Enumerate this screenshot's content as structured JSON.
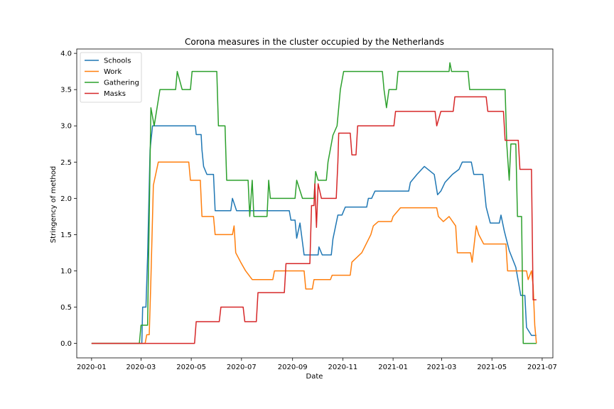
{
  "chart_data": {
    "type": "line",
    "title": "Corona measures in the cluster occupied by the Netherlands",
    "xlabel": "Date",
    "ylabel": "Stringency of method",
    "xlim": [
      "2019-12-14",
      "2021-07-14"
    ],
    "ylim": [
      -0.2,
      4.06
    ],
    "x_ticks": [
      "2020-01",
      "2020-03",
      "2020-05",
      "2020-07",
      "2020-09",
      "2020-11",
      "2021-01",
      "2021-03",
      "2021-05",
      "2021-07"
    ],
    "y_ticks": [
      "0.0",
      "0.5",
      "1.0",
      "1.5",
      "2.0",
      "2.5",
      "3.0",
      "3.5",
      "4.0"
    ],
    "legend_position": "upper-left",
    "series": [
      {
        "name": "Schools",
        "color": "#1f77b4",
        "points": [
          [
            "2020-01-01",
            0
          ],
          [
            "2020-03-02",
            0
          ],
          [
            "2020-03-03",
            0.5
          ],
          [
            "2020-03-07",
            0.5
          ],
          [
            "2020-03-09",
            1.2
          ],
          [
            "2020-03-12",
            2.67
          ],
          [
            "2020-03-15",
            3.0
          ],
          [
            "2020-05-06",
            3.0
          ],
          [
            "2020-05-07",
            2.88
          ],
          [
            "2020-05-13",
            2.88
          ],
          [
            "2020-05-14",
            2.67
          ],
          [
            "2020-05-16",
            2.44
          ],
          [
            "2020-05-20",
            2.33
          ],
          [
            "2020-05-28",
            2.33
          ],
          [
            "2020-05-30",
            1.83
          ],
          [
            "2020-06-18",
            1.83
          ],
          [
            "2020-06-20",
            2.0
          ],
          [
            "2020-06-25",
            1.83
          ],
          [
            "2020-08-28",
            1.83
          ],
          [
            "2020-08-30",
            1.7
          ],
          [
            "2020-09-04",
            1.7
          ],
          [
            "2020-09-06",
            1.45
          ],
          [
            "2020-09-10",
            1.66
          ],
          [
            "2020-09-15",
            1.22
          ],
          [
            "2020-10-02",
            1.22
          ],
          [
            "2020-10-03",
            1.33
          ],
          [
            "2020-10-07",
            1.22
          ],
          [
            "2020-10-18",
            1.22
          ],
          [
            "2020-10-20",
            1.44
          ],
          [
            "2020-10-24",
            1.66
          ],
          [
            "2020-10-26",
            1.77
          ],
          [
            "2020-10-31",
            1.77
          ],
          [
            "2020-11-04",
            1.88
          ],
          [
            "2020-11-30",
            1.88
          ],
          [
            "2020-12-02",
            2.0
          ],
          [
            "2020-12-06",
            2.0
          ],
          [
            "2020-12-10",
            2.1
          ],
          [
            "2021-01-20",
            2.1
          ],
          [
            "2021-01-22",
            2.22
          ],
          [
            "2021-01-30",
            2.33
          ],
          [
            "2021-02-08",
            2.44
          ],
          [
            "2021-02-20",
            2.33
          ],
          [
            "2021-02-24",
            2.05
          ],
          [
            "2021-02-28",
            2.1
          ],
          [
            "2021-03-05",
            2.22
          ],
          [
            "2021-03-14",
            2.33
          ],
          [
            "2021-03-22",
            2.4
          ],
          [
            "2021-03-26",
            2.5
          ],
          [
            "2021-04-06",
            2.5
          ],
          [
            "2021-04-09",
            2.33
          ],
          [
            "2021-04-20",
            2.33
          ],
          [
            "2021-04-24",
            1.88
          ],
          [
            "2021-04-29",
            1.66
          ],
          [
            "2021-05-10",
            1.66
          ],
          [
            "2021-05-12",
            1.77
          ],
          [
            "2021-05-16",
            1.55
          ],
          [
            "2021-05-22",
            1.28
          ],
          [
            "2021-05-30",
            1.05
          ],
          [
            "2021-06-05",
            0.66
          ],
          [
            "2021-06-10",
            0.66
          ],
          [
            "2021-06-12",
            0.22
          ],
          [
            "2021-06-18",
            0.11
          ],
          [
            "2021-06-24",
            0.11
          ]
        ]
      },
      {
        "name": "Work",
        "color": "#ff7f0e",
        "points": [
          [
            "2020-01-01",
            0
          ],
          [
            "2020-03-06",
            0
          ],
          [
            "2020-03-08",
            0.12
          ],
          [
            "2020-03-11",
            0.12
          ],
          [
            "2020-03-13",
            0.88
          ],
          [
            "2020-03-16",
            2.18
          ],
          [
            "2020-03-22",
            2.5
          ],
          [
            "2020-04-28",
            2.5
          ],
          [
            "2020-04-30",
            2.25
          ],
          [
            "2020-05-12",
            2.25
          ],
          [
            "2020-05-14",
            1.75
          ],
          [
            "2020-05-28",
            1.75
          ],
          [
            "2020-05-30",
            1.5
          ],
          [
            "2020-06-20",
            1.5
          ],
          [
            "2020-06-22",
            1.62
          ],
          [
            "2020-06-24",
            1.25
          ],
          [
            "2020-06-30",
            1.12
          ],
          [
            "2020-07-06",
            1.0
          ],
          [
            "2020-07-14",
            0.88
          ],
          [
            "2020-08-08",
            0.88
          ],
          [
            "2020-08-10",
            1.0
          ],
          [
            "2020-09-15",
            1.0
          ],
          [
            "2020-09-17",
            0.75
          ],
          [
            "2020-09-25",
            0.75
          ],
          [
            "2020-09-27",
            0.88
          ],
          [
            "2020-10-17",
            0.88
          ],
          [
            "2020-10-19",
            0.94
          ],
          [
            "2020-11-10",
            0.94
          ],
          [
            "2020-11-12",
            1.12
          ],
          [
            "2020-11-24",
            1.25
          ],
          [
            "2020-12-05",
            1.5
          ],
          [
            "2020-12-08",
            1.62
          ],
          [
            "2020-12-14",
            1.68
          ],
          [
            "2020-12-30",
            1.68
          ],
          [
            "2021-01-01",
            1.75
          ],
          [
            "2021-01-10",
            1.87
          ],
          [
            "2021-02-23",
            1.87
          ],
          [
            "2021-02-25",
            1.75
          ],
          [
            "2021-03-03",
            1.68
          ],
          [
            "2021-03-10",
            1.75
          ],
          [
            "2021-03-18",
            1.62
          ],
          [
            "2021-03-20",
            1.25
          ],
          [
            "2021-04-05",
            1.25
          ],
          [
            "2021-04-07",
            1.12
          ],
          [
            "2021-04-12",
            1.62
          ],
          [
            "2021-04-15",
            1.5
          ],
          [
            "2021-04-21",
            1.37
          ],
          [
            "2021-05-18",
            1.37
          ],
          [
            "2021-05-20",
            1.0
          ],
          [
            "2021-06-12",
            1.0
          ],
          [
            "2021-06-14",
            0.88
          ],
          [
            "2021-06-18",
            1.0
          ],
          [
            "2021-06-20",
            0.8
          ],
          [
            "2021-06-22",
            0.25
          ],
          [
            "2021-06-24",
            0.0
          ]
        ]
      },
      {
        "name": "Gathering",
        "color": "#2ca02c",
        "points": [
          [
            "2020-01-01",
            0
          ],
          [
            "2020-02-28",
            0
          ],
          [
            "2020-03-01",
            0.25
          ],
          [
            "2020-03-09",
            0.25
          ],
          [
            "2020-03-13",
            3.25
          ],
          [
            "2020-03-17",
            3.0
          ],
          [
            "2020-03-24",
            3.5
          ],
          [
            "2020-04-12",
            3.5
          ],
          [
            "2020-04-14",
            3.75
          ],
          [
            "2020-04-20",
            3.5
          ],
          [
            "2020-04-30",
            3.5
          ],
          [
            "2020-05-02",
            3.75
          ],
          [
            "2020-06-01",
            3.75
          ],
          [
            "2020-06-03",
            3.0
          ],
          [
            "2020-06-11",
            3.0
          ],
          [
            "2020-06-13",
            2.25
          ],
          [
            "2020-07-09",
            2.25
          ],
          [
            "2020-07-11",
            1.75
          ],
          [
            "2020-07-14",
            2.25
          ],
          [
            "2020-07-16",
            1.75
          ],
          [
            "2020-08-01",
            1.75
          ],
          [
            "2020-08-03",
            2.25
          ],
          [
            "2020-08-05",
            2.0
          ],
          [
            "2020-09-04",
            2.0
          ],
          [
            "2020-09-06",
            2.25
          ],
          [
            "2020-09-13",
            2.0
          ],
          [
            "2020-09-27",
            2.0
          ],
          [
            "2020-09-29",
            2.37
          ],
          [
            "2020-10-02",
            2.25
          ],
          [
            "2020-10-12",
            2.25
          ],
          [
            "2020-10-14",
            2.5
          ],
          [
            "2020-10-20",
            2.87
          ],
          [
            "2020-10-25",
            3.0
          ],
          [
            "2020-10-29",
            3.5
          ],
          [
            "2020-11-02",
            3.75
          ],
          [
            "2020-12-19",
            3.75
          ],
          [
            "2020-12-21",
            3.5
          ],
          [
            "2020-12-24",
            3.25
          ],
          [
            "2020-12-27",
            3.5
          ],
          [
            "2021-01-05",
            3.5
          ],
          [
            "2021-01-07",
            3.75
          ],
          [
            "2021-03-10",
            3.75
          ],
          [
            "2021-03-11",
            3.87
          ],
          [
            "2021-03-13",
            3.75
          ],
          [
            "2021-04-02",
            3.75
          ],
          [
            "2021-04-04",
            3.5
          ],
          [
            "2021-05-17",
            3.5
          ],
          [
            "2021-05-19",
            2.75
          ],
          [
            "2021-05-22",
            2.25
          ],
          [
            "2021-05-24",
            2.75
          ],
          [
            "2021-05-30",
            2.75
          ],
          [
            "2021-06-01",
            1.75
          ],
          [
            "2021-06-06",
            1.75
          ],
          [
            "2021-06-08",
            0.0
          ],
          [
            "2021-06-24",
            0.0
          ]
        ]
      },
      {
        "name": "Masks",
        "color": "#d62728",
        "points": [
          [
            "2020-01-01",
            0
          ],
          [
            "2020-05-05",
            0
          ],
          [
            "2020-05-07",
            0.3
          ],
          [
            "2020-06-04",
            0.3
          ],
          [
            "2020-06-06",
            0.5
          ],
          [
            "2020-07-03",
            0.5
          ],
          [
            "2020-07-05",
            0.3
          ],
          [
            "2020-07-19",
            0.3
          ],
          [
            "2020-07-21",
            0.7
          ],
          [
            "2020-08-22",
            0.7
          ],
          [
            "2020-08-24",
            1.1
          ],
          [
            "2020-09-22",
            1.1
          ],
          [
            "2020-09-24",
            1.9
          ],
          [
            "2020-09-27",
            1.9
          ],
          [
            "2020-09-28",
            2.2
          ],
          [
            "2020-09-30",
            1.6
          ],
          [
            "2020-10-02",
            2.2
          ],
          [
            "2020-10-06",
            2.0
          ],
          [
            "2020-10-24",
            2.0
          ],
          [
            "2020-10-26",
            2.5
          ],
          [
            "2020-10-27",
            2.9
          ],
          [
            "2020-11-10",
            2.9
          ],
          [
            "2020-11-12",
            2.6
          ],
          [
            "2020-11-17",
            2.6
          ],
          [
            "2020-11-19",
            3.0
          ],
          [
            "2021-01-02",
            3.0
          ],
          [
            "2021-01-04",
            3.2
          ],
          [
            "2021-02-21",
            3.2
          ],
          [
            "2021-02-23",
            3.0
          ],
          [
            "2021-02-28",
            3.2
          ],
          [
            "2021-03-15",
            3.2
          ],
          [
            "2021-03-17",
            3.4
          ],
          [
            "2021-04-24",
            3.4
          ],
          [
            "2021-04-26",
            3.2
          ],
          [
            "2021-05-15",
            3.2
          ],
          [
            "2021-05-17",
            2.8
          ],
          [
            "2021-06-02",
            2.8
          ],
          [
            "2021-06-04",
            2.4
          ],
          [
            "2021-06-18",
            2.4
          ],
          [
            "2021-06-20",
            0.6
          ],
          [
            "2021-06-24",
            0.6
          ]
        ]
      }
    ]
  }
}
